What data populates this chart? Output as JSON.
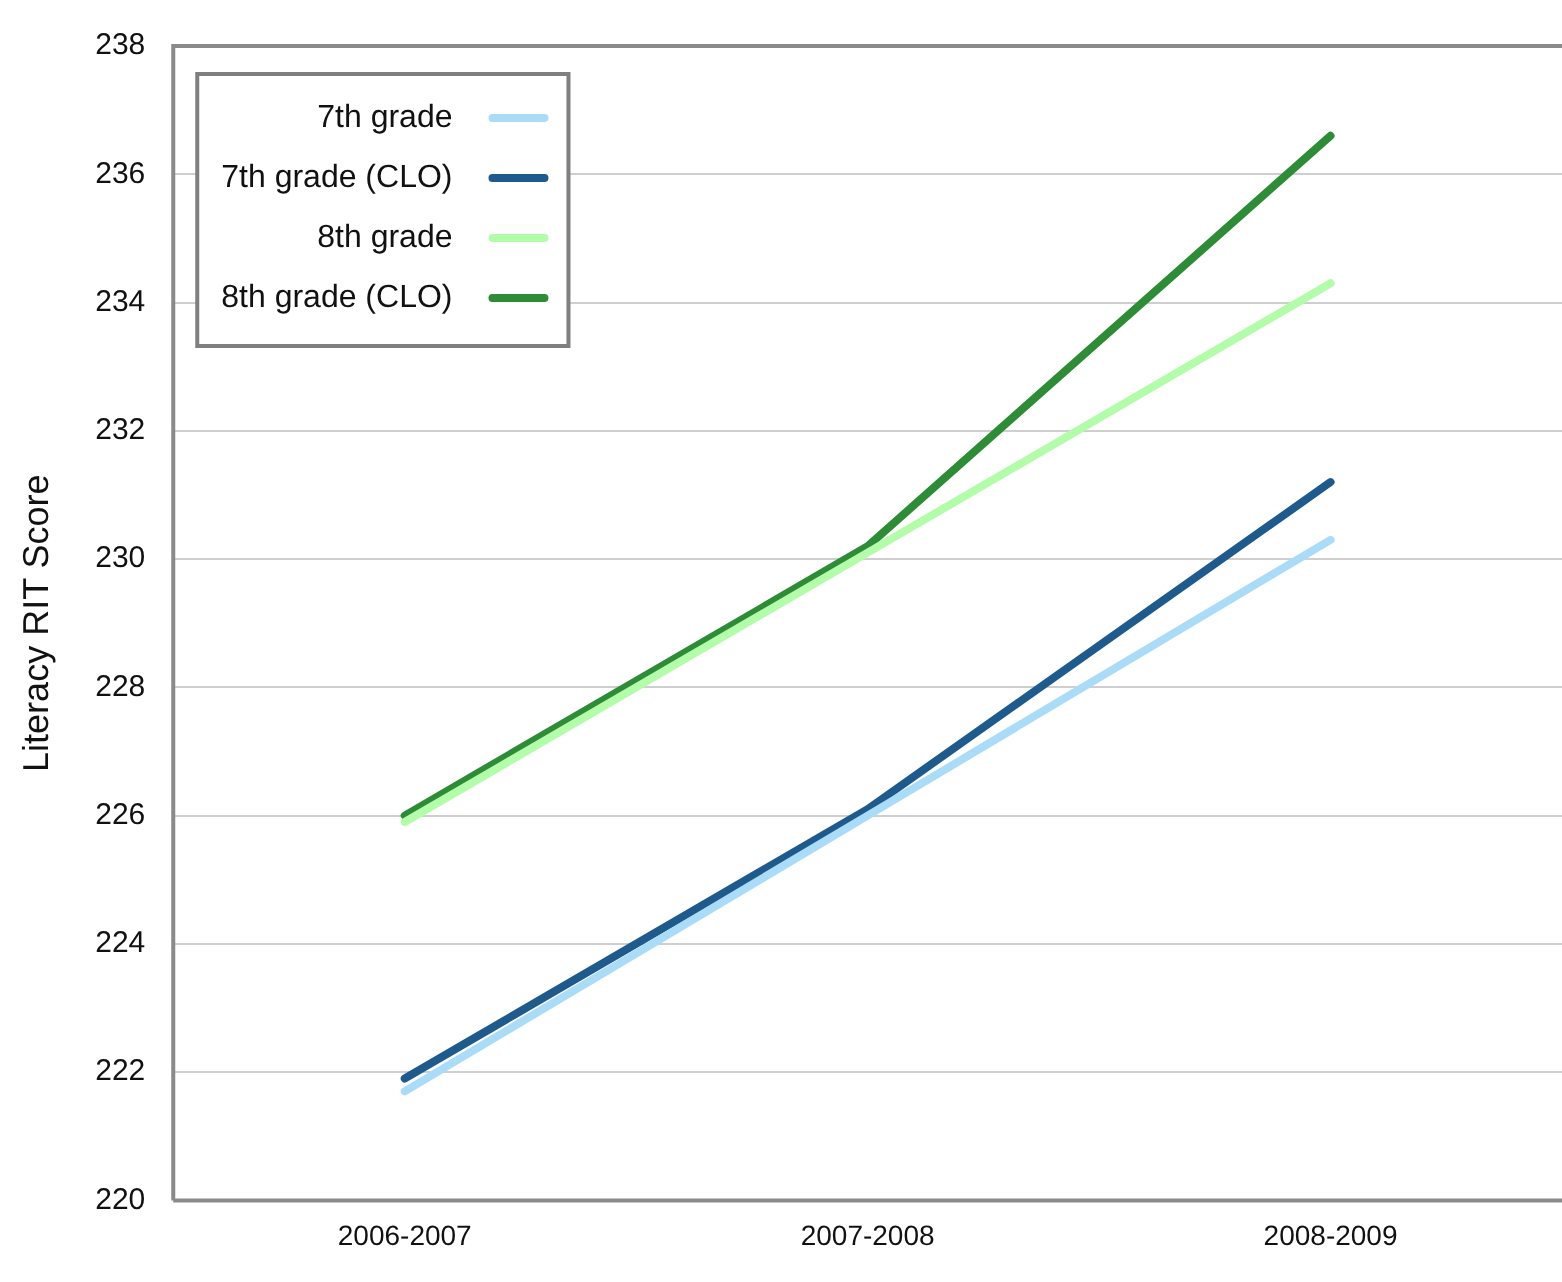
{
  "chart_data": {
    "type": "line",
    "ylabel": "Literacy RIT Score",
    "categories": [
      "2006-2007",
      "2007-2008",
      "2008-2009"
    ],
    "series": [
      {
        "name": "7th grade",
        "color": "#aadcf7",
        "values": [
          221.7,
          226.0,
          230.3
        ]
      },
      {
        "name": "7th grade (CLO)",
        "color": "#1f5a8c",
        "values": [
          221.9,
          226.1,
          231.2
        ]
      },
      {
        "name": "8th grade",
        "color": "#b3fcaa",
        "values": [
          225.9,
          230.1,
          234.3
        ]
      },
      {
        "name": "8th grade (CLO)",
        "color": "#2e8b36",
        "values": [
          226.0,
          230.2,
          236.6
        ]
      }
    ],
    "ylim": [
      220,
      238
    ],
    "yticks": [
      220,
      222,
      224,
      226,
      228,
      230,
      232,
      234,
      236,
      238
    ],
    "grid": "y",
    "legend": "top left",
    "marker": "none",
    "line_style": "solid"
  }
}
